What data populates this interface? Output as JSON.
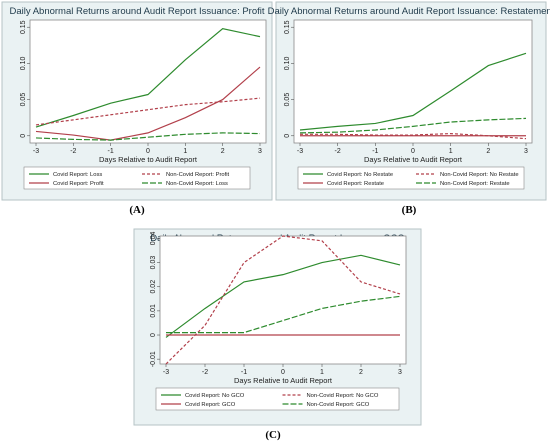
{
  "chart_data": [
    {
      "type": "line",
      "panel_label": "(A)",
      "title": "Daily Abnormal Returns around Audit Report Issuance: Profit",
      "xlabel": "Days Relative to Audit Report",
      "ylabel": "",
      "x": [
        -3,
        -2,
        -1,
        0,
        1,
        2,
        3
      ],
      "xlim": [
        -3,
        3
      ],
      "ylim": [
        -0.01,
        0.16
      ],
      "yticks": [
        0,
        0.05,
        0.1,
        0.15
      ],
      "ytick_labels": [
        "0",
        "0.05",
        "0.10",
        "0.15"
      ],
      "xtick_labels": [
        "-3",
        "-2",
        "-1",
        "0",
        "1",
        "2",
        "3"
      ],
      "legend_position": "bottom",
      "series": [
        {
          "name": "Covid Report: Loss",
          "color": "#2e8b2e",
          "dash": "solid",
          "values": [
            0.012,
            0.028,
            0.045,
            0.057,
            0.105,
            0.148,
            0.137
          ]
        },
        {
          "name": "Non-Covid Report: Profit",
          "color": "#b2404b",
          "dash": "short",
          "values": [
            0.015,
            0.022,
            0.029,
            0.036,
            0.043,
            0.047,
            0.052
          ]
        },
        {
          "name": "Covid Report: Profit",
          "color": "#b2404b",
          "dash": "solid",
          "values": [
            0.006,
            0.001,
            -0.006,
            0.004,
            0.025,
            0.05,
            0.095
          ]
        },
        {
          "name": "Non-Covid Report: Loss",
          "color": "#2e8b2e",
          "dash": "long",
          "values": [
            -0.003,
            -0.005,
            -0.006,
            -0.002,
            0.002,
            0.004,
            0.003
          ]
        }
      ]
    },
    {
      "type": "line",
      "panel_label": "(B)",
      "title": "Daily Abnormal Returns around Audit Report Issuance: Restatement",
      "xlabel": "Days Relative to Audit Report",
      "ylabel": "",
      "x": [
        -3,
        -2,
        -1,
        0,
        1,
        2,
        3
      ],
      "xlim": [
        -3,
        3
      ],
      "ylim": [
        -0.01,
        0.16
      ],
      "yticks": [
        0,
        0.05,
        0.1,
        0.15
      ],
      "ytick_labels": [
        "0",
        "0.05",
        "0.10",
        "0.15"
      ],
      "xtick_labels": [
        "-3",
        "-2",
        "-1",
        "0",
        "1",
        "2",
        "3"
      ],
      "legend_position": "bottom",
      "series": [
        {
          "name": "Covid Report: No Restate",
          "color": "#2e8b2e",
          "dash": "solid",
          "values": [
            0.008,
            0.013,
            0.017,
            0.028,
            0.062,
            0.097,
            0.114
          ]
        },
        {
          "name": "Non-Covid Report: No Restate",
          "color": "#b2404b",
          "dash": "short",
          "values": [
            0.002,
            0.002,
            0.001,
            0.001,
            0.003,
            0.0,
            -0.004
          ]
        },
        {
          "name": "Covid Report: Restate",
          "color": "#b2404b",
          "dash": "solid",
          "values": [
            0.0,
            0.0,
            0.0,
            0.0,
            0.0,
            0.0,
            0.0
          ]
        },
        {
          "name": "Non-Covid Report: Restate",
          "color": "#2e8b2e",
          "dash": "long",
          "values": [
            0.004,
            0.005,
            0.008,
            0.013,
            0.019,
            0.022,
            0.024
          ]
        }
      ]
    },
    {
      "type": "line",
      "panel_label": "(C)",
      "title": "Daily Abnormal Returns around Audit Report Issuance: GCO",
      "xlabel": "Days Relative to Audit Report",
      "ylabel": "",
      "x": [
        -3,
        -2,
        -1,
        0,
        1,
        2,
        3
      ],
      "xlim": [
        -3,
        3
      ],
      "ylim": [
        -0.012,
        0.041
      ],
      "yticks": [
        -0.01,
        0,
        0.01,
        0.02,
        0.03,
        0.04
      ],
      "ytick_labels": [
        "-0.01",
        "0",
        "0.01",
        "0.02",
        "0.03",
        "0.04"
      ],
      "xtick_labels": [
        "-3",
        "-2",
        "-1",
        "0",
        "1",
        "2",
        "3"
      ],
      "legend_position": "bottom",
      "series": [
        {
          "name": "Covid Report: No GCO",
          "color": "#2e8b2e",
          "dash": "solid",
          "values": [
            -0.001,
            0.011,
            0.022,
            0.025,
            0.03,
            0.033,
            0.029
          ]
        },
        {
          "name": "Non-Covid Report: No GCO",
          "color": "#b2404b",
          "dash": "short",
          "values": [
            -0.012,
            0.004,
            0.03,
            0.041,
            0.039,
            0.022,
            0.017
          ]
        },
        {
          "name": "Covid Report: GCO",
          "color": "#b2404b",
          "dash": "solid",
          "values": [
            0.0,
            0.0,
            0.0,
            0.0,
            0.0,
            0.0,
            0.0
          ]
        },
        {
          "name": "Non-Covid Report: GCO",
          "color": "#2e8b2e",
          "dash": "long",
          "values": [
            0.001,
            0.001,
            0.001,
            0.006,
            0.011,
            0.014,
            0.016
          ]
        }
      ]
    }
  ]
}
